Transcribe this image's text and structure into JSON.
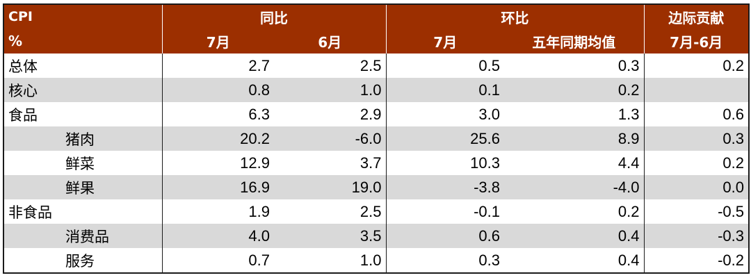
{
  "header": {
    "corner_top": "CPI",
    "corner_bottom": "%",
    "groups": [
      "同比",
      "环比",
      "边际贡献"
    ],
    "subheaders": [
      "7月",
      "6月",
      "7月",
      "五年同期均值",
      "7月-6月"
    ]
  },
  "rows": [
    {
      "label": "总体",
      "values": [
        "2.7",
        "2.5",
        "0.5",
        "0.3",
        "0.2"
      ]
    },
    {
      "label": "核心",
      "values": [
        "0.8",
        "1.0",
        "0.1",
        "0.2",
        ""
      ]
    },
    {
      "label": "食品",
      "values": [
        "6.3",
        "2.9",
        "3.0",
        "1.3",
        "0.6"
      ]
    },
    {
      "label": "猪肉",
      "values": [
        "20.2",
        "-6.0",
        "25.6",
        "8.9",
        "0.3"
      ]
    },
    {
      "label": "鲜菜",
      "values": [
        "12.9",
        "3.7",
        "10.3",
        "4.4",
        "0.2"
      ]
    },
    {
      "label": "鲜果",
      "values": [
        "16.9",
        "19.0",
        "-3.8",
        "-4.0",
        "0.0"
      ]
    },
    {
      "label": "非食品",
      "values": [
        "1.9",
        "2.5",
        "-0.1",
        "0.2",
        "-0.5"
      ]
    },
    {
      "label": "消费品",
      "values": [
        "4.0",
        "3.5",
        "0.6",
        "0.4",
        "-0.3"
      ]
    },
    {
      "label": "服务",
      "values": [
        "0.7",
        "1.0",
        "0.3",
        "0.4",
        "-0.2"
      ]
    }
  ],
  "colors": {
    "header_bg": "#9c2f00",
    "header_text": "#ffffff",
    "shaded_row": "#d9d9d9"
  }
}
